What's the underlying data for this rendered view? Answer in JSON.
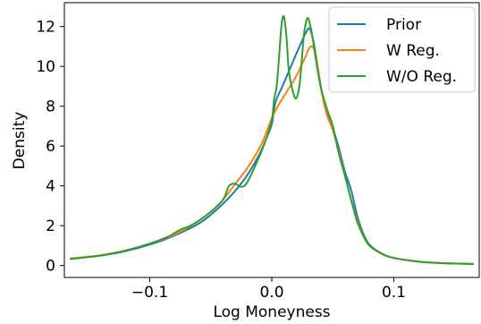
{
  "chart_data": {
    "type": "line",
    "title": "",
    "xlabel": "Log Moneyness",
    "ylabel": "Density",
    "xlim": [
      -0.17,
      0.17
    ],
    "ylim": [
      -0.6,
      13.2
    ],
    "xticks": [
      -0.1,
      0.0,
      0.1
    ],
    "xtick_labels": [
      "−0.1",
      "0.0",
      "0.1"
    ],
    "yticks": [
      0,
      2,
      4,
      6,
      8,
      10,
      12
    ],
    "ytick_labels": [
      "0",
      "2",
      "4",
      "6",
      "8",
      "10",
      "12"
    ],
    "grid": false,
    "legend_position": "top-right",
    "series": [
      {
        "name": "Prior",
        "color": "#1f77b4",
        "points": [
          [
            -0.165,
            0.35
          ],
          [
            -0.14,
            0.5
          ],
          [
            -0.12,
            0.72
          ],
          [
            -0.1,
            1.05
          ],
          [
            -0.08,
            1.5
          ],
          [
            -0.06,
            2.1
          ],
          [
            -0.05,
            2.55
          ],
          [
            -0.04,
            3.1
          ],
          [
            -0.03,
            3.75
          ],
          [
            -0.02,
            4.55
          ],
          [
            -0.01,
            5.6
          ],
          [
            -0.005,
            6.3
          ],
          [
            0.0,
            7.1
          ],
          [
            0.003,
            8.2
          ],
          [
            0.008,
            8.9
          ],
          [
            0.015,
            9.9
          ],
          [
            0.022,
            10.9
          ],
          [
            0.028,
            11.7
          ],
          [
            0.031,
            11.9
          ],
          [
            0.034,
            11.3
          ],
          [
            0.037,
            10.2
          ],
          [
            0.041,
            8.7
          ],
          [
            0.045,
            7.7
          ],
          [
            0.05,
            6.9
          ],
          [
            0.055,
            5.9
          ],
          [
            0.06,
            4.7
          ],
          [
            0.065,
            3.8
          ],
          [
            0.07,
            2.5
          ],
          [
            0.075,
            1.6
          ],
          [
            0.08,
            1.05
          ],
          [
            0.09,
            0.6
          ],
          [
            0.1,
            0.38
          ],
          [
            0.12,
            0.2
          ],
          [
            0.14,
            0.12
          ],
          [
            0.165,
            0.08
          ]
        ]
      },
      {
        "name": "W Reg.",
        "color": "#ff7f0e",
        "points": [
          [
            -0.165,
            0.35
          ],
          [
            -0.14,
            0.52
          ],
          [
            -0.12,
            0.75
          ],
          [
            -0.1,
            1.1
          ],
          [
            -0.08,
            1.55
          ],
          [
            -0.065,
            2.05
          ],
          [
            -0.05,
            2.7
          ],
          [
            -0.04,
            3.3
          ],
          [
            -0.03,
            4.1
          ],
          [
            -0.02,
            4.9
          ],
          [
            -0.01,
            5.9
          ],
          [
            -0.005,
            6.6
          ],
          [
            0.0,
            7.4
          ],
          [
            0.005,
            8.0
          ],
          [
            0.012,
            8.7
          ],
          [
            0.02,
            9.5
          ],
          [
            0.027,
            10.4
          ],
          [
            0.032,
            11.0
          ],
          [
            0.036,
            10.6
          ],
          [
            0.04,
            9.0
          ],
          [
            0.045,
            7.6
          ],
          [
            0.05,
            6.8
          ],
          [
            0.055,
            5.7
          ],
          [
            0.06,
            4.5
          ],
          [
            0.065,
            3.3
          ],
          [
            0.07,
            2.3
          ],
          [
            0.075,
            1.5
          ],
          [
            0.08,
            1.0
          ],
          [
            0.09,
            0.6
          ],
          [
            0.1,
            0.38
          ],
          [
            0.12,
            0.2
          ],
          [
            0.14,
            0.12
          ],
          [
            0.165,
            0.08
          ]
        ]
      },
      {
        "name": "W/O Reg.",
        "color": "#2ca02c",
        "points": [
          [
            -0.165,
            0.33
          ],
          [
            -0.14,
            0.5
          ],
          [
            -0.12,
            0.75
          ],
          [
            -0.1,
            1.1
          ],
          [
            -0.085,
            1.45
          ],
          [
            -0.075,
            1.8
          ],
          [
            -0.065,
            2.05
          ],
          [
            -0.05,
            2.7
          ],
          [
            -0.04,
            3.3
          ],
          [
            -0.035,
            4.0
          ],
          [
            -0.03,
            4.1
          ],
          [
            -0.025,
            3.95
          ],
          [
            -0.02,
            4.2
          ],
          [
            -0.01,
            5.5
          ],
          [
            -0.005,
            6.3
          ],
          [
            0.0,
            7.3
          ],
          [
            0.002,
            8.4
          ],
          [
            0.004,
            9.0
          ],
          [
            0.006,
            10.5
          ],
          [
            0.008,
            12.1
          ],
          [
            0.01,
            12.5
          ],
          [
            0.012,
            11.5
          ],
          [
            0.014,
            9.8
          ],
          [
            0.017,
            8.8
          ],
          [
            0.02,
            8.4
          ],
          [
            0.023,
            9.2
          ],
          [
            0.026,
            11.4
          ],
          [
            0.028,
            12.2
          ],
          [
            0.03,
            12.4
          ],
          [
            0.033,
            11.6
          ],
          [
            0.036,
            10.4
          ],
          [
            0.04,
            9.0
          ],
          [
            0.045,
            7.9
          ],
          [
            0.05,
            7.0
          ],
          [
            0.055,
            5.6
          ],
          [
            0.06,
            4.5
          ],
          [
            0.065,
            3.3
          ],
          [
            0.07,
            2.2
          ],
          [
            0.075,
            1.5
          ],
          [
            0.08,
            1.0
          ],
          [
            0.09,
            0.6
          ],
          [
            0.1,
            0.38
          ],
          [
            0.12,
            0.2
          ],
          [
            0.14,
            0.12
          ],
          [
            0.165,
            0.08
          ]
        ]
      }
    ]
  }
}
